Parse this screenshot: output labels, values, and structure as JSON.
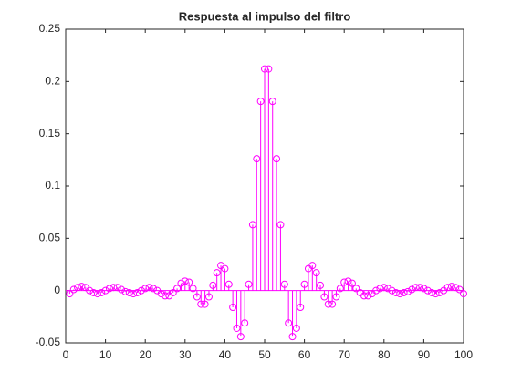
{
  "chart_data": {
    "type": "stem",
    "title": "Respuesta al impulso del filtro",
    "x": [
      1,
      2,
      3,
      4,
      5,
      6,
      7,
      8,
      9,
      10,
      11,
      12,
      13,
      14,
      15,
      16,
      17,
      18,
      19,
      20,
      21,
      22,
      23,
      24,
      25,
      26,
      27,
      28,
      29,
      30,
      31,
      32,
      33,
      34,
      35,
      36,
      37,
      38,
      39,
      40,
      41,
      42,
      43,
      44,
      45,
      46,
      47,
      48,
      49,
      50,
      51,
      52,
      53,
      54,
      55,
      56,
      57,
      58,
      59,
      60,
      61,
      62,
      63,
      64,
      65,
      66,
      67,
      68,
      69,
      70,
      71,
      72,
      73,
      74,
      75,
      76,
      77,
      78,
      79,
      80,
      81,
      82,
      83,
      84,
      85,
      86,
      87,
      88,
      89,
      90,
      91,
      92,
      93,
      94,
      95,
      96,
      97,
      98,
      99,
      100
    ],
    "values": [
      -0.003,
      0.001,
      0.003,
      0.004,
      0.003,
      0,
      -0.002,
      -0.003,
      -0.002,
      0,
      0.002,
      0.003,
      0.003,
      0.001,
      -0.001,
      -0.002,
      -0.003,
      -0.002,
      0,
      0.002,
      0.003,
      0.002,
      0,
      -0.003,
      -0.005,
      -0.005,
      -0.002,
      0.002,
      0.007,
      0.009,
      0.008,
      0.002,
      -0.006,
      -0.013,
      -0.013,
      -0.006,
      0.005,
      0.017,
      0.024,
      0.021,
      0.006,
      -0.016,
      -0.036,
      -0.044,
      -0.031,
      0.006,
      0.063,
      0.126,
      0.181,
      0.212,
      0.212,
      0.181,
      0.126,
      0.063,
      0.006,
      -0.031,
      -0.044,
      -0.036,
      -0.016,
      0.006,
      0.021,
      0.024,
      0.017,
      0.005,
      -0.006,
      -0.013,
      -0.013,
      -0.006,
      0.002,
      0.008,
      0.009,
      0.007,
      0.002,
      -0.002,
      -0.005,
      -0.005,
      -0.003,
      0,
      0.002,
      0.003,
      0.002,
      0,
      -0.002,
      -0.003,
      -0.002,
      -0.001,
      0.001,
      0.003,
      0.003,
      0.002,
      0,
      -0.002,
      -0.003,
      -0.002,
      0,
      0.003,
      0.004,
      0.003,
      0.001,
      -0.003
    ],
    "color": "#ff00ff",
    "xlim": [
      0,
      100
    ],
    "xticks": [
      0,
      10,
      20,
      30,
      40,
      50,
      60,
      70,
      80,
      90,
      100
    ],
    "ylim": [
      -0.05,
      0.25
    ],
    "yticks": [
      -0.05,
      0,
      0.05,
      0.1,
      0.15,
      0.2,
      0.25
    ]
  }
}
